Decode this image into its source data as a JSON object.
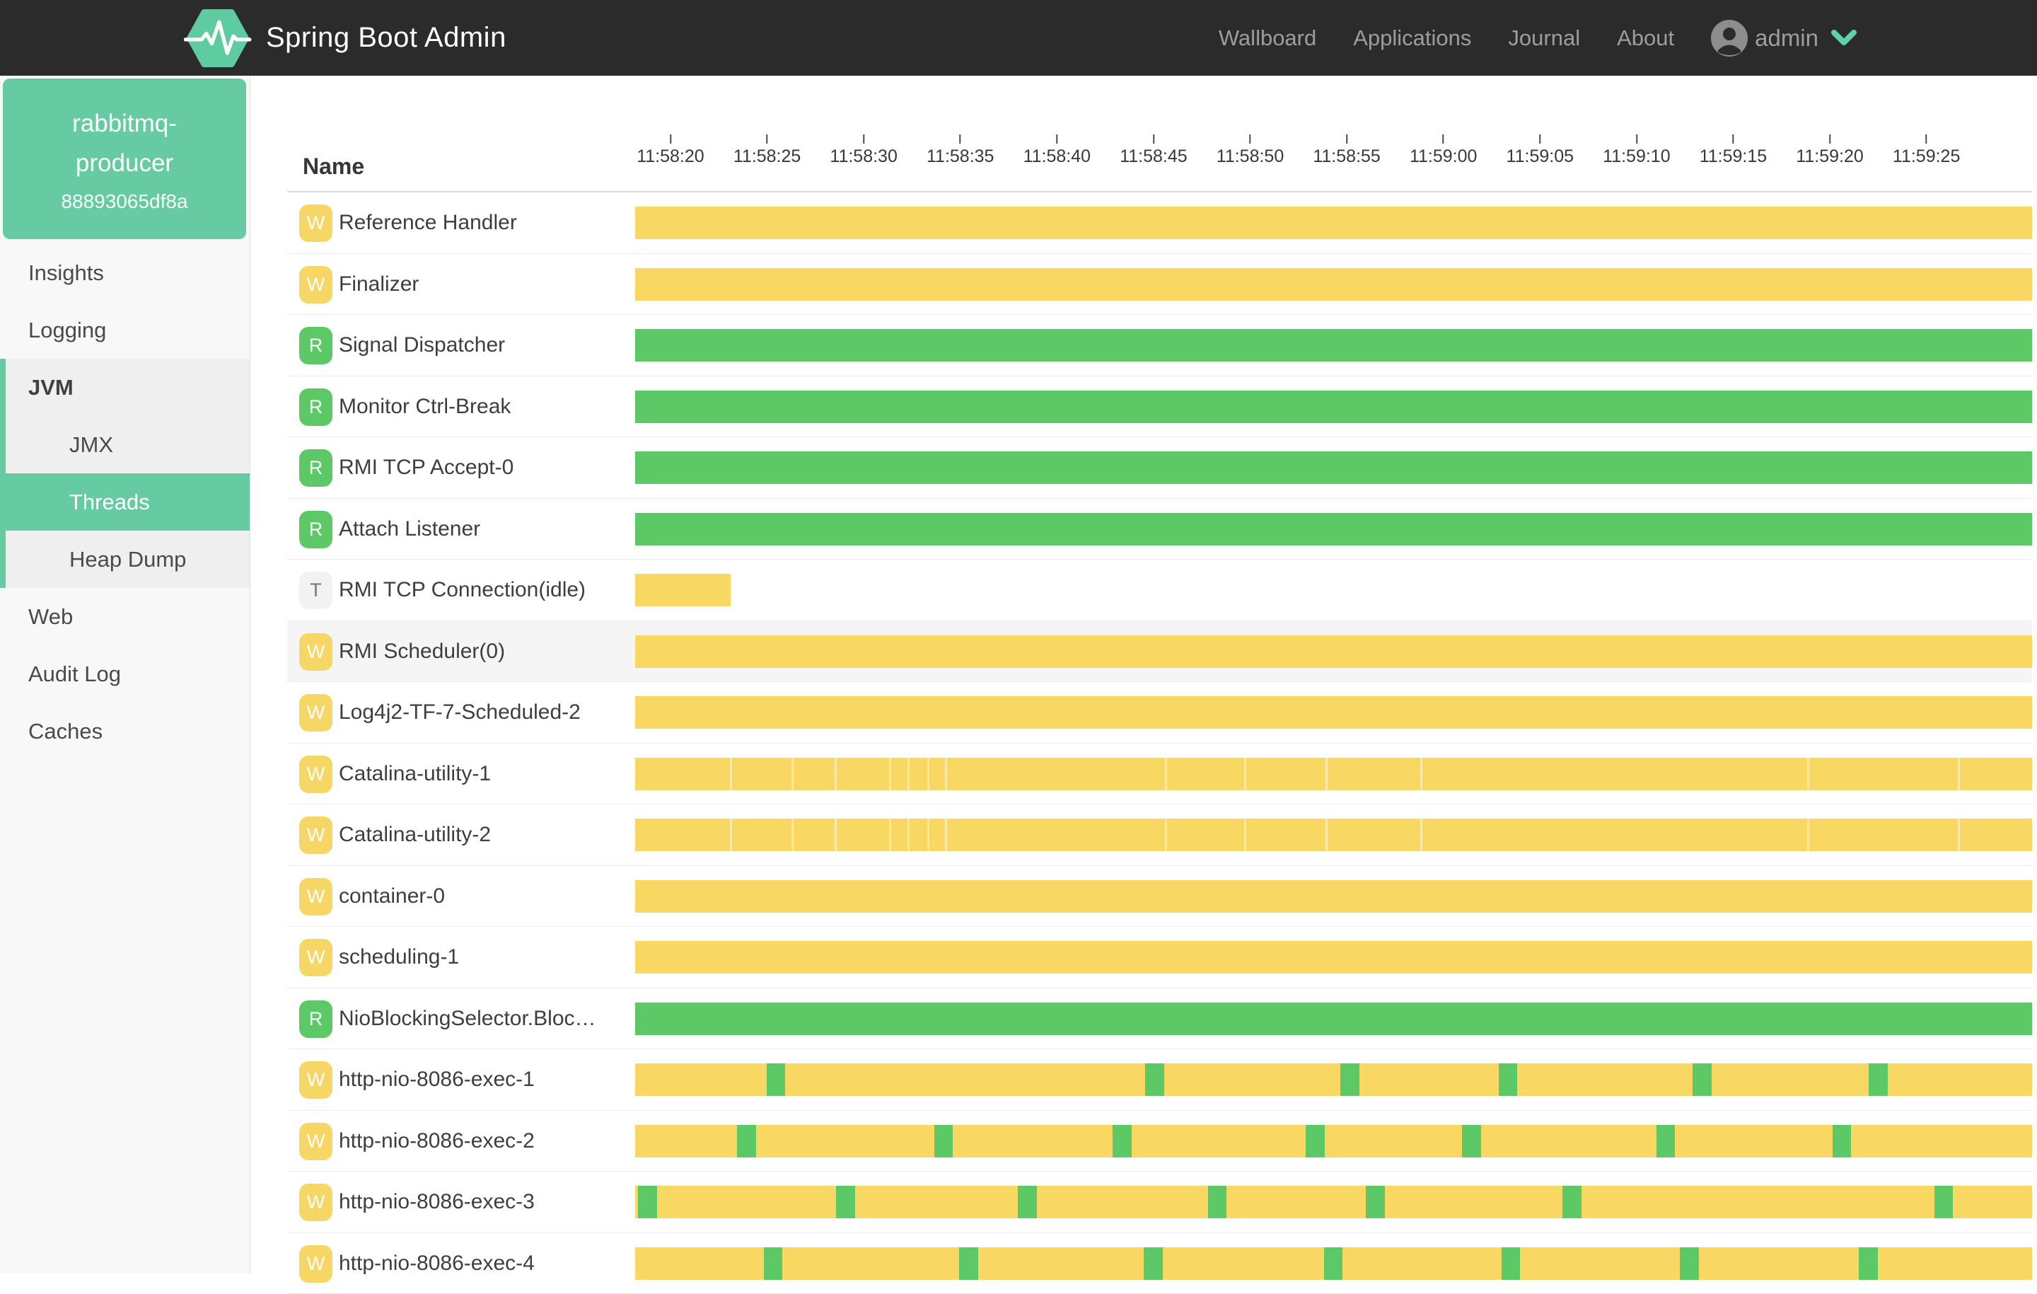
{
  "navbar": {
    "title": "Spring Boot Admin",
    "links": [
      "Wallboard",
      "Applications",
      "Journal",
      "About"
    ],
    "user": "admin"
  },
  "sidebar": {
    "app_line1": "rabbitmq-",
    "app_line2": "producer",
    "instance_id": "88893065df8a",
    "menu": [
      {
        "items": [
          {
            "label": "Insights"
          },
          {
            "label": "Logging"
          }
        ]
      },
      {
        "group": "jvm",
        "items": [
          {
            "label": "JVM",
            "header": true
          },
          {
            "label": "JMX",
            "sub": true
          },
          {
            "label": "Threads",
            "sub": true,
            "selected": true
          },
          {
            "label": "Heap Dump",
            "sub": true
          }
        ]
      },
      {
        "items": [
          {
            "label": "Web"
          },
          {
            "label": "Audit Log"
          },
          {
            "label": "Caches"
          }
        ]
      }
    ]
  },
  "table": {
    "name_header": "Name",
    "ticks": [
      "11:58:20",
      "11:58:25",
      "11:58:30",
      "11:58:35",
      "11:58:40",
      "11:58:45",
      "11:58:50",
      "11:58:55",
      "11:59:00",
      "11:59:05",
      "11:59:10",
      "11:59:15",
      "11:59:20",
      "11:59:25"
    ]
  },
  "timeline": {
    "first_tick_frac": 0.0253,
    "tick_step_frac": 0.06916,
    "mark_width_frac": 0.0135
  },
  "threads": [
    {
      "name": "Reference Handler",
      "badge": "W",
      "state": "waiting",
      "bar": {
        "start": 0,
        "end": 1
      }
    },
    {
      "name": "Finalizer",
      "badge": "W",
      "state": "waiting",
      "bar": {
        "start": 0,
        "end": 1
      }
    },
    {
      "name": "Signal Dispatcher",
      "badge": "R",
      "state": "runnable",
      "bar": {
        "start": 0,
        "end": 1
      }
    },
    {
      "name": "Monitor Ctrl-Break",
      "badge": "R",
      "state": "runnable",
      "bar": {
        "start": 0,
        "end": 1
      }
    },
    {
      "name": "RMI TCP Accept-0",
      "badge": "R",
      "state": "runnable",
      "bar": {
        "start": 0,
        "end": 1
      }
    },
    {
      "name": "Attach Listener",
      "badge": "R",
      "state": "runnable",
      "bar": {
        "start": 0,
        "end": 1
      }
    },
    {
      "name": "RMI TCP Connection(idle)",
      "badge": "T",
      "state": "timed_waiting",
      "bar": {
        "start": 0,
        "end": 0.0685
      }
    },
    {
      "name": "RMI Scheduler(0)",
      "badge": "W",
      "state": "waiting",
      "bar": {
        "start": 0,
        "end": 1
      },
      "hovered": true
    },
    {
      "name": "Log4j2-TF-7-Scheduled-2",
      "badge": "W",
      "state": "waiting",
      "bar": {
        "start": 0,
        "end": 1
      }
    },
    {
      "name": "Catalina-utility-1",
      "badge": "W",
      "state": "waiting",
      "bar": {
        "start": 0,
        "end": 1
      },
      "breaks": [
        0.068,
        0.112,
        0.143,
        0.182,
        0.195,
        0.209,
        0.222,
        0.379,
        0.436,
        0.494,
        0.562,
        0.839,
        0.947
      ]
    },
    {
      "name": "Catalina-utility-2",
      "badge": "W",
      "state": "waiting",
      "bar": {
        "start": 0,
        "end": 1
      },
      "breaks": [
        0.068,
        0.112,
        0.143,
        0.182,
        0.195,
        0.209,
        0.222,
        0.379,
        0.436,
        0.494,
        0.562,
        0.839,
        0.947
      ]
    },
    {
      "name": "container-0",
      "badge": "W",
      "state": "waiting",
      "bar": {
        "start": 0,
        "end": 1
      }
    },
    {
      "name": "scheduling-1",
      "badge": "W",
      "state": "waiting",
      "bar": {
        "start": 0,
        "end": 1
      }
    },
    {
      "name": "NioBlockingSelector.Bloc…",
      "badge": "R",
      "state": "runnable",
      "bar": {
        "start": 0,
        "end": 1
      }
    },
    {
      "name": "http-nio-8086-exec-1",
      "badge": "W",
      "state": "waiting",
      "bar": {
        "start": 0,
        "end": 1
      },
      "marks": [
        0.094,
        0.365,
        0.505,
        0.618,
        0.757,
        0.883
      ]
    },
    {
      "name": "http-nio-8086-exec-2",
      "badge": "W",
      "state": "waiting",
      "bar": {
        "start": 0,
        "end": 1
      },
      "marks": [
        0.073,
        0.214,
        0.342,
        0.48,
        0.592,
        0.731,
        0.857
      ]
    },
    {
      "name": "http-nio-8086-exec-3",
      "badge": "W",
      "state": "waiting",
      "bar": {
        "start": 0,
        "end": 1
      },
      "marks": [
        0.002,
        0.144,
        0.274,
        0.41,
        0.523,
        0.664,
        0.93
      ]
    },
    {
      "name": "http-nio-8086-exec-4",
      "badge": "W",
      "state": "waiting",
      "bar": {
        "start": 0,
        "end": 1
      },
      "marks": [
        0.092,
        0.232,
        0.364,
        0.493,
        0.62,
        0.748,
        0.876
      ]
    }
  ],
  "colors": {
    "navbar_bg": "#2b2b2b",
    "brand_green": "#5ecba1",
    "chevron_green": "#5fd3a8",
    "sidebar_bg": "#f8f8f8",
    "sidebar_group_bg": "#efefef",
    "sidebar_selected_green": "#66cba3",
    "bar_waiting_yellow": "#f8d763",
    "bar_runnable_green": "#5cc966",
    "badge_timed_bg": "#f2f2f2",
    "nav_link_gray": "#9d9d9d"
  }
}
